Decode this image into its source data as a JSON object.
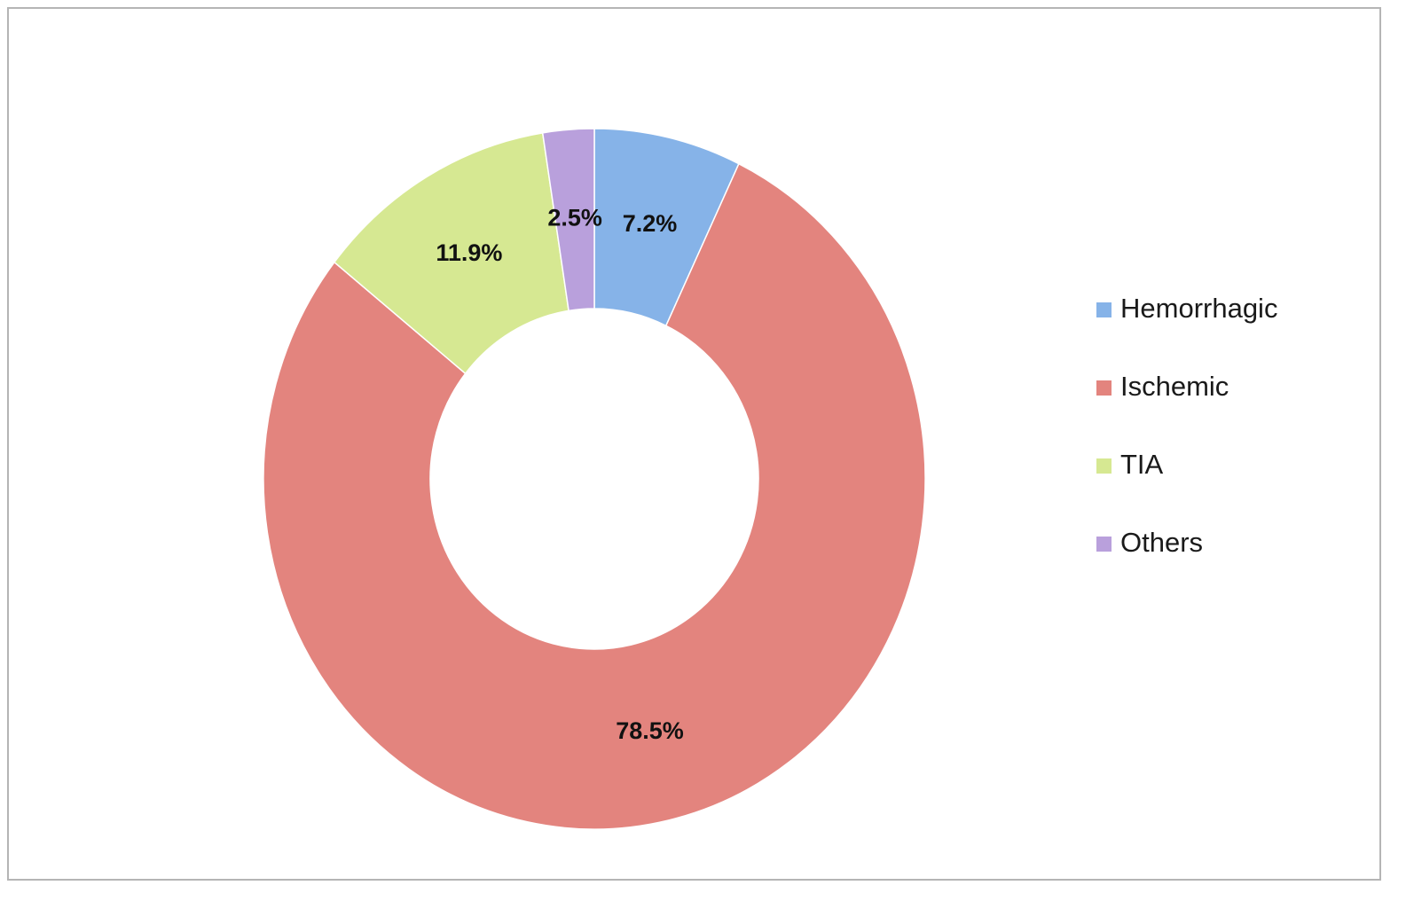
{
  "chart_data": {
    "type": "donut",
    "categories": [
      "Hemorrhagic",
      "Ischemic",
      "TIA",
      "Others"
    ],
    "values": [
      7.2,
      78.5,
      11.9,
      2.5
    ],
    "value_labels": [
      "7.2%",
      "78.5%",
      "11.9%",
      "2.5%"
    ],
    "colors": [
      "#86b3e8",
      "#e3847e",
      "#d6e892",
      "#b9a0dc"
    ],
    "legend": "right"
  }
}
